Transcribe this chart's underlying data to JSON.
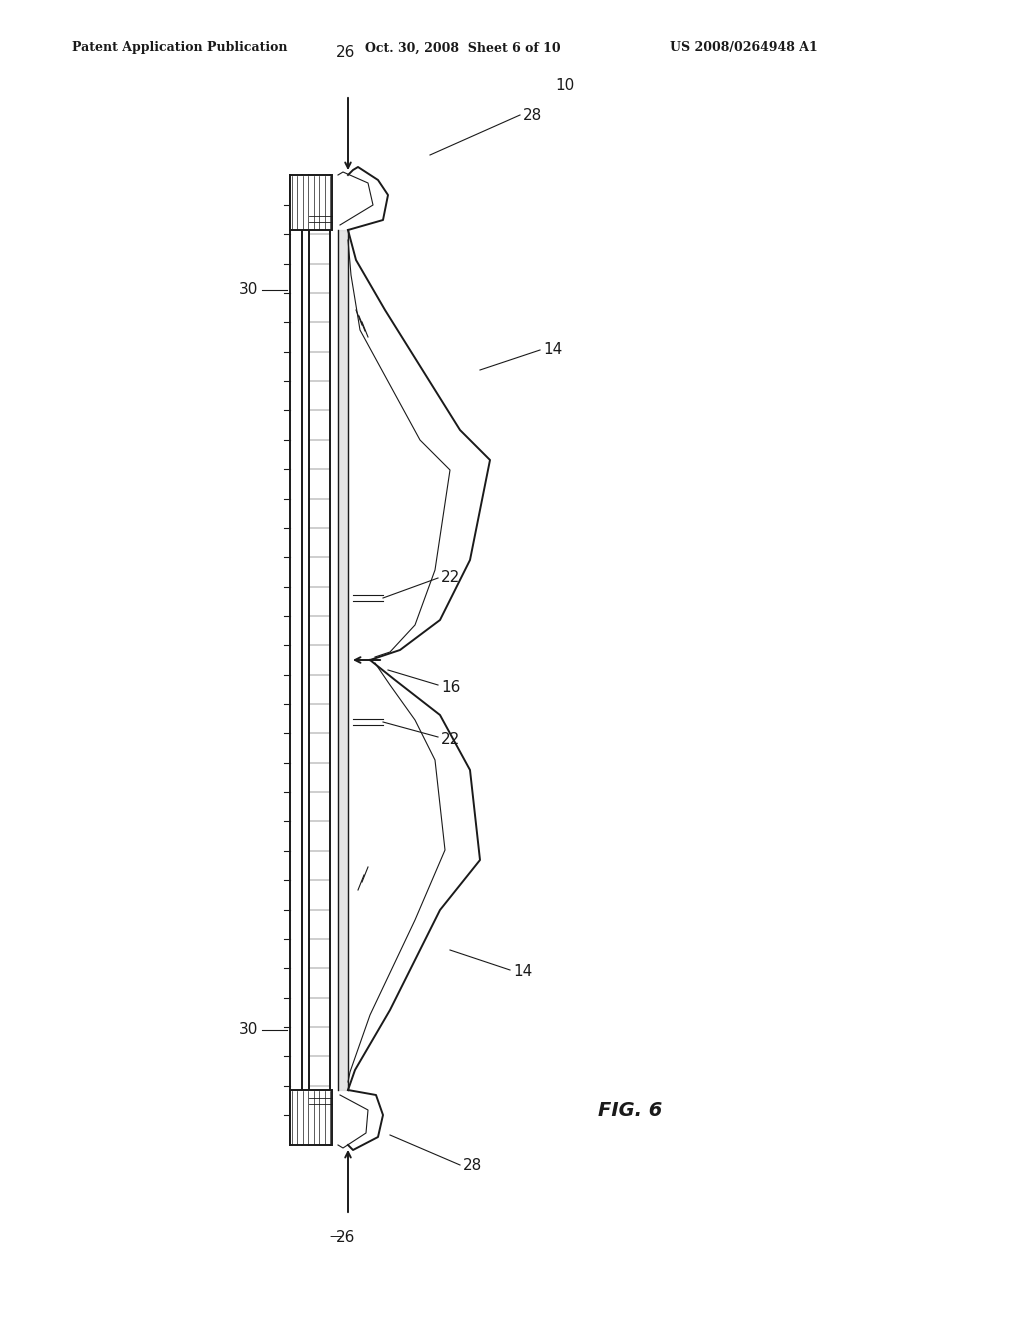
{
  "bg_color": "#ffffff",
  "line_color": "#1a1a1a",
  "header_left": "Patent Application Publication",
  "header_mid": "Oct. 30, 2008  Sheet 6 of 10",
  "header_right": "US 2008/0264948 A1",
  "fig_label": "FIG. 6"
}
